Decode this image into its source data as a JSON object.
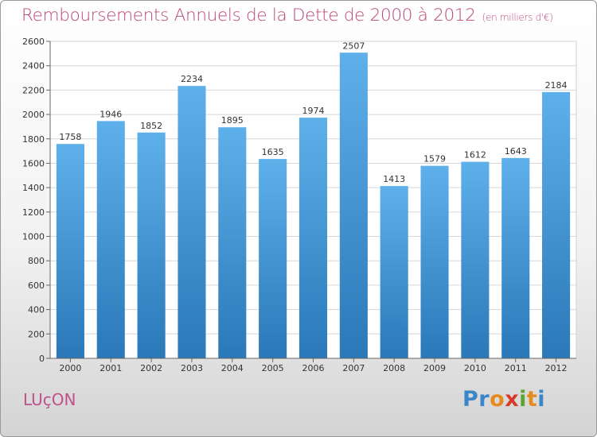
{
  "header": {
    "title": "Remboursements Annuels de la Dette de 2000 à 2012",
    "unit": "(en milliers d'€)"
  },
  "footer": {
    "commune": "LUçON",
    "brand_letters": [
      {
        "ch": "P",
        "color": "#3a86c8"
      },
      {
        "ch": "r",
        "color": "#3a86c8"
      },
      {
        "ch": "o",
        "color": "#e58a1f"
      },
      {
        "ch": "x",
        "color": "#d83a2a"
      },
      {
        "ch": "i",
        "color": "#5aa532"
      },
      {
        "ch": "t",
        "color": "#e58a1f"
      },
      {
        "ch": "i",
        "color": "#3a86c8"
      }
    ]
  },
  "chart_data": {
    "type": "bar",
    "title": "Remboursements Annuels de la Dette de 2000 à 2012",
    "subtitle": "(en milliers d'€)",
    "categories": [
      "2000",
      "2001",
      "2002",
      "2003",
      "2004",
      "2005",
      "2006",
      "2007",
      "2008",
      "2009",
      "2010",
      "2011",
      "2012"
    ],
    "values": [
      1758,
      1946,
      1852,
      2234,
      1895,
      1635,
      1974,
      2507,
      1413,
      1579,
      1612,
      1643,
      2184
    ],
    "ylim": [
      0,
      2600
    ],
    "yticks": [
      0,
      200,
      400,
      600,
      800,
      1000,
      1200,
      1400,
      1600,
      1800,
      2000,
      2200,
      2400,
      2600
    ],
    "grid": true,
    "bar_color_top": "#5eb0ea",
    "bar_color_bottom": "#2a78b8"
  }
}
